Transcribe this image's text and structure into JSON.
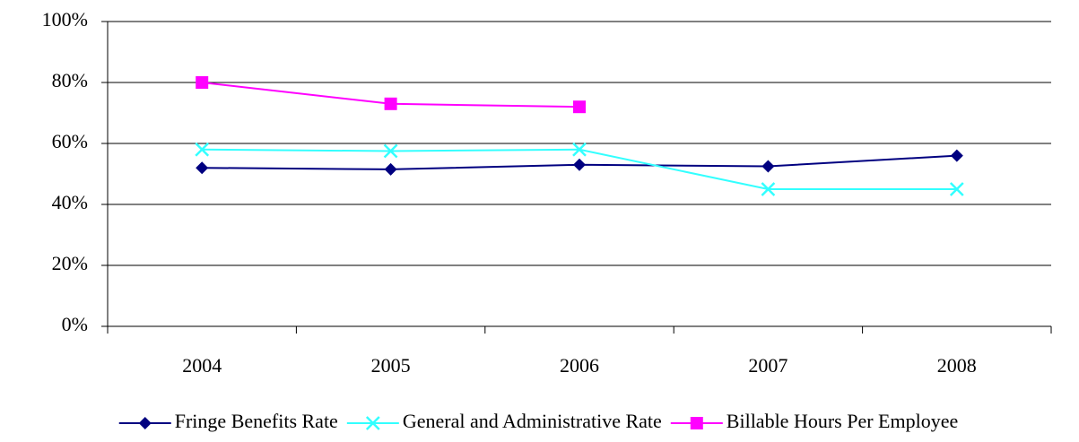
{
  "chart_data": {
    "type": "line",
    "categories": [
      "2004",
      "2005",
      "2006",
      "2007",
      "2008"
    ],
    "series": [
      {
        "name": "Fringe Benefits Rate",
        "color": "#000080",
        "marker": "diamond",
        "values": [
          52,
          51.5,
          53,
          52.5,
          56
        ]
      },
      {
        "name": "General and Administrative Rate",
        "color": "#33ffff",
        "marker": "x",
        "values": [
          58,
          57.5,
          58,
          45,
          45
        ]
      },
      {
        "name": "Billable Hours Per Employee",
        "color": "#ff00ff",
        "marker": "square",
        "values": [
          80,
          73,
          72,
          null,
          null
        ]
      }
    ],
    "ylim": [
      0,
      100
    ],
    "yticks": [
      {
        "value": 0,
        "label": "0%"
      },
      {
        "value": 20,
        "label": "20%"
      },
      {
        "value": 40,
        "label": "40%"
      },
      {
        "value": 60,
        "label": "60%"
      },
      {
        "value": 80,
        "label": "80%"
      },
      {
        "value": 100,
        "label": "100%"
      }
    ],
    "grid": true,
    "legend": "bottom"
  }
}
